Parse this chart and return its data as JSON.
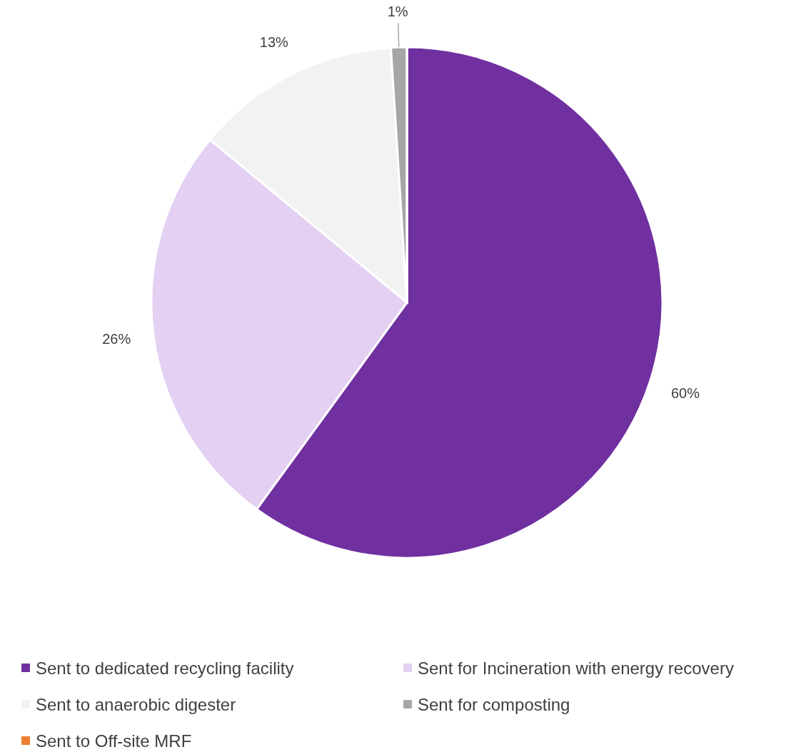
{
  "chart_data": {
    "type": "pie",
    "categories": [
      "Sent to dedicated recycling facility",
      "Sent for Incineration with energy recovery",
      "Sent to anaerobic digester",
      "Sent for composting",
      "Sent to Off-site MRF"
    ],
    "values": [
      60,
      26,
      13,
      1,
      0
    ],
    "colors": [
      "#7030a0",
      "#e3d0f2",
      "#f2f2f2",
      "#a6a6a6",
      "#ed7d31"
    ],
    "value_labels": [
      "60%",
      "26%",
      "13%",
      "1%",
      null
    ],
    "legend": "bottom"
  }
}
